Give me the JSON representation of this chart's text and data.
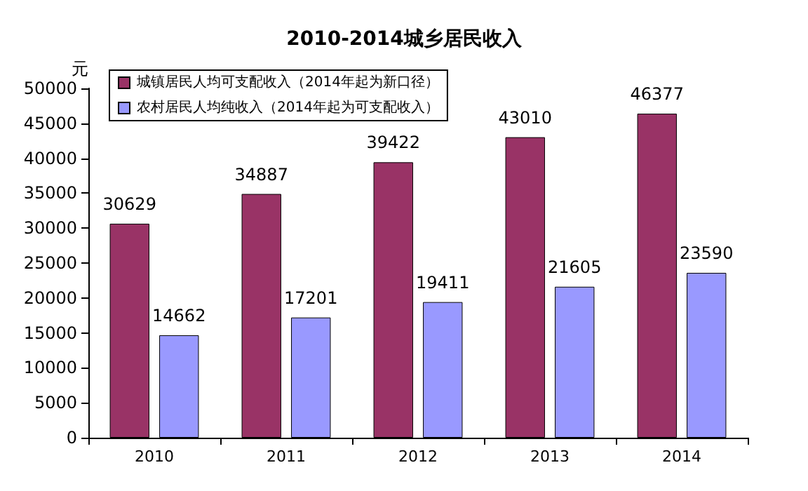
{
  "chart_data": {
    "type": "bar",
    "title": "2010-2014城乡居民收入",
    "ylabel": "元",
    "categories": [
      "2010",
      "2011",
      "2012",
      "2013",
      "2014"
    ],
    "series": [
      {
        "name": "城镇居民人均可支配收入（2014年起为新口径）",
        "color": "#993366",
        "values": [
          30629,
          34887,
          39422,
          43010,
          46377
        ]
      },
      {
        "name": "农村居民人均纯收入（2014年起为可支配收入）",
        "color": "#9999ff",
        "values": [
          14662,
          17201,
          19411,
          21605,
          23590
        ]
      }
    ],
    "ylim": [
      0,
      50000
    ],
    "yticks": [
      0,
      5000,
      10000,
      15000,
      20000,
      25000,
      30000,
      35000,
      40000,
      45000,
      50000
    ],
    "grid": false,
    "legend": "top left",
    "data_labels": true
  }
}
